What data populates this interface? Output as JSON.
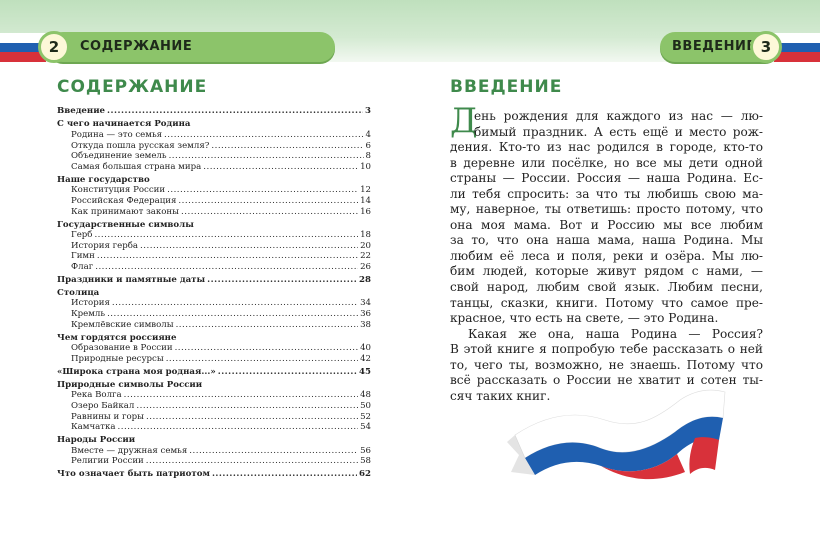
{
  "left_page": {
    "page_number": "2",
    "header_label": "СОДЕРЖАНИЕ",
    "title": "СОДЕРЖАНИЕ",
    "toc": [
      {
        "title": "Введение",
        "page": "3",
        "level": 0
      },
      {
        "title": "С чего начинается Родина",
        "page": "",
        "level": 0
      },
      {
        "title": "Родина — это семья",
        "page": "4",
        "level": 1
      },
      {
        "title": "Откуда пошла русская земля?",
        "page": "6",
        "level": 1
      },
      {
        "title": "Объединение земель",
        "page": "8",
        "level": 1
      },
      {
        "title": "Самая большая страна мира",
        "page": "10",
        "level": 1
      },
      {
        "title": "Наше государство",
        "page": "",
        "level": 0
      },
      {
        "title": "Конституция России",
        "page": "12",
        "level": 1
      },
      {
        "title": "Российская Федерация",
        "page": "14",
        "level": 1
      },
      {
        "title": "Как принимают законы",
        "page": "16",
        "level": 1
      },
      {
        "title": "Государственные символы",
        "page": "",
        "level": 0
      },
      {
        "title": "Герб",
        "page": "18",
        "level": 1
      },
      {
        "title": "История герба",
        "page": "20",
        "level": 1
      },
      {
        "title": "Гимн",
        "page": "22",
        "level": 1
      },
      {
        "title": "Флаг",
        "page": "26",
        "level": 1
      },
      {
        "title": "Праздники и памятные даты",
        "page": "28",
        "level": 0
      },
      {
        "title": "Столица",
        "page": "",
        "level": 0
      },
      {
        "title": "История",
        "page": "34",
        "level": 1
      },
      {
        "title": "Кремль",
        "page": "36",
        "level": 1
      },
      {
        "title": "Кремлёвские символы",
        "page": "38",
        "level": 1
      },
      {
        "title": "Чем гордятся россияне",
        "page": "",
        "level": 0
      },
      {
        "title": "Образование в России",
        "page": "40",
        "level": 1
      },
      {
        "title": "Природные ресурсы",
        "page": "42",
        "level": 1
      },
      {
        "title": "«Широка страна моя родная...»",
        "page": "45",
        "level": 0
      },
      {
        "title": "Природные символы России",
        "page": "",
        "level": 0
      },
      {
        "title": "Река Волга",
        "page": "48",
        "level": 1
      },
      {
        "title": "Озеро Байкал",
        "page": "50",
        "level": 1
      },
      {
        "title": "Равнины и горы",
        "page": "52",
        "level": 1
      },
      {
        "title": "Камчатка",
        "page": "54",
        "level": 1
      },
      {
        "title": "Народы России",
        "page": "",
        "level": 0
      },
      {
        "title": "Вместе — дружная семья",
        "page": "56",
        "level": 1
      },
      {
        "title": "Религии России",
        "page": "58",
        "level": 1
      },
      {
        "title": "Что означает быть патриотом",
        "page": "62",
        "level": 0
      }
    ]
  },
  "right_page": {
    "page_number": "3",
    "header_label": "ВВЕДЕНИЕ",
    "title": "ВВЕДЕНИЕ",
    "drop_cap": "Д",
    "lines": [
      "ень рождения для каждого из нас — лю-",
      "бимый праздник. А есть ещё и место рож-",
      "дения. Кто-то из нас родился в городе, кто-то",
      "в деревне или посёлке, но все мы дети одной",
      "страны — России. Россия — наша Родина. Ес-",
      "ли тебя спросить: за что ты любишь свою ма-",
      "му, наверное, ты ответишь: просто потому, что",
      "она моя мама. Вот и Россию мы все любим",
      "за то, что она наша мама, наша Родина. Мы",
      "любим её леса и поля, реки и озёра. Мы лю-",
      "бим людей, которые живут рядом с нами, —",
      "свой народ, любим свой язык. Любим песни,",
      "танцы, сказки, книги. Потому что самое пре-",
      "красное, что есть на свете, — это Родина.",
      "Какая же она, наша Родина — Россия?",
      "В этой книге я попробую тебе рассказать о ней",
      "то, чего ты, возможно, не знаешь. Потому что",
      "всё рассказать о России не хватит и сотен ты-",
      "сяч таких книг."
    ]
  },
  "colors": {
    "accent_green": "#3f8a4c",
    "pill_green": "#8cc46a",
    "flag_white": "#ffffff",
    "flag_blue": "#1f5fb0",
    "flag_red": "#d8313a"
  }
}
